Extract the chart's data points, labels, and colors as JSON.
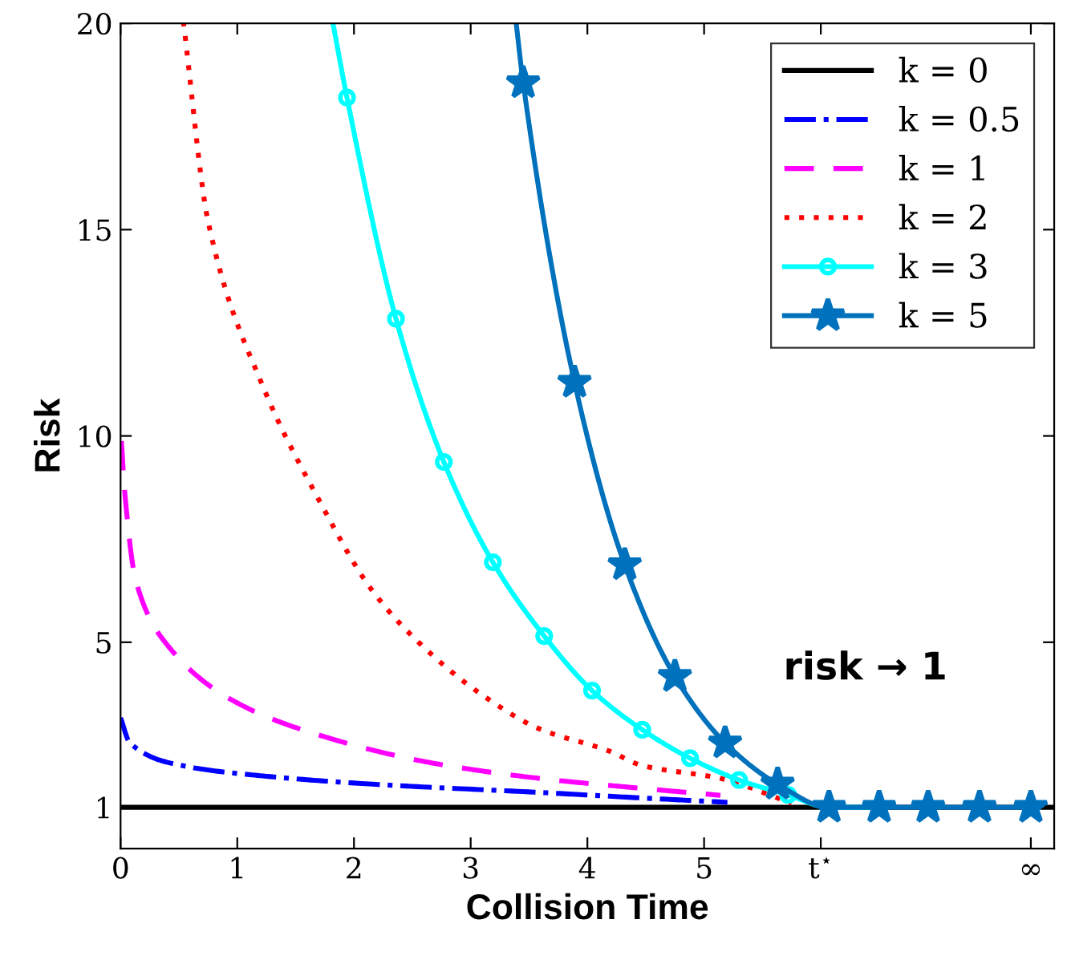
{
  "chart_data": {
    "type": "line",
    "xlabel": "Collision Time",
    "ylabel": "Risk",
    "xlim": [
      0,
      8
    ],
    "ylim": [
      0,
      20
    ],
    "xticks": [
      0,
      1,
      2,
      3,
      4,
      5,
      {
        "value": 6,
        "label": "t$^{⋆}$"
      },
      {
        "value": 7.8,
        "label": "∞"
      }
    ],
    "yticks": [
      1,
      5,
      10,
      15,
      20
    ],
    "grid": false,
    "legend": "top right",
    "annotations": [
      "risk → 1"
    ],
    "series": [
      {
        "name": "k = 0",
        "color": "#000000",
        "line_style": "solid",
        "marker": "none",
        "x": [
          0,
          8
        ],
        "values": [
          1,
          1
        ]
      },
      {
        "name": "k = 0.5",
        "color": "#0000ff",
        "line_style": "dashdot",
        "marker": "none",
        "x": [
          0,
          0.08,
          0.51,
          1.22,
          2.16,
          3.59,
          4.44,
          5.2
        ],
        "values": [
          3.17,
          2.56,
          2.02,
          1.76,
          1.56,
          1.36,
          1.23,
          1.12
        ]
      },
      {
        "name": "k = 1",
        "color": "#ff00ff",
        "line_style": "dashed",
        "marker": "none",
        "x": [
          0,
          0.04,
          0.13,
          0.41,
          0.98,
          1.69,
          2.64,
          3.59,
          4.34,
          5.14
        ],
        "values": [
          10.2,
          8.5,
          6.5,
          4.9,
          3.56,
          2.76,
          2.09,
          1.7,
          1.49,
          1.29
        ]
      },
      {
        "name": "k = 2",
        "color": "#ff0000",
        "line_style": "dotted",
        "marker": "none",
        "x": [
          0.54,
          0.75,
          1.22,
          1.69,
          2.16,
          2.64,
          3.11,
          3.59,
          4.19,
          4.46,
          5.14,
          5.75
        ],
        "values": [
          20,
          15.2,
          11.2,
          8.5,
          6.24,
          4.77,
          3.7,
          2.9,
          2.36,
          2.02,
          1.7,
          1.1
        ]
      },
      {
        "name": "k = 3",
        "color": "#00ffff",
        "line_style": "solid",
        "marker": "circle",
        "x": [
          1.82,
          1.94,
          2.36,
          2.77,
          3.19,
          3.63,
          4.04,
          4.47,
          4.88,
          5.3,
          5.72,
          6.07,
          6.5
        ],
        "values": [
          20,
          18.2,
          12.84,
          9.37,
          6.94,
          5.15,
          3.83,
          2.88,
          2.19,
          1.66,
          1.3,
          1,
          1
        ]
      },
      {
        "name": "k = 5",
        "color": "#0072bd",
        "line_style": "solid",
        "marker": "star",
        "x": [
          3.39,
          3.45,
          3.89,
          4.32,
          4.75,
          5.18,
          5.63,
          6.07,
          6.5,
          6.92,
          7.36,
          7.8
        ],
        "values": [
          20,
          18.56,
          11.3,
          6.88,
          4.17,
          2.56,
          1.56,
          1,
          1,
          1,
          1,
          1
        ]
      }
    ]
  }
}
